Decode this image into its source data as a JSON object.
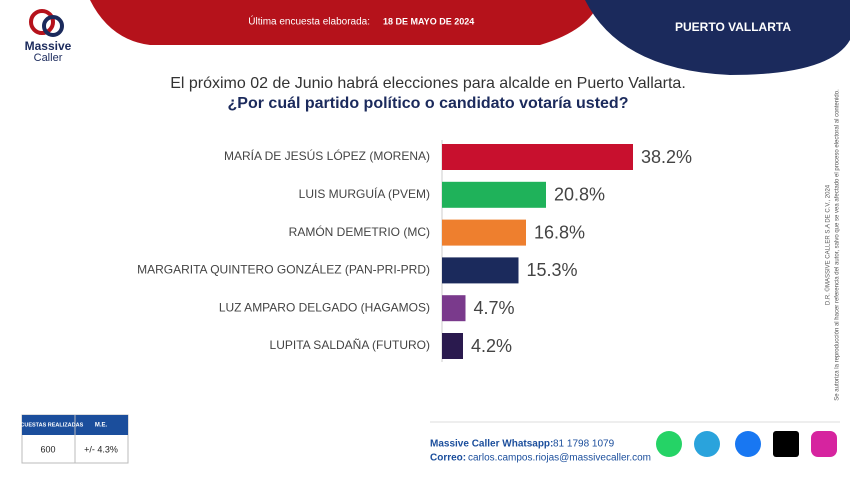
{
  "header": {
    "brand": "Massive",
    "brand_sub": "Caller",
    "survey_label": "Última encuesta elaborada:",
    "survey_date": "18 DE MAYO DE 2024",
    "region": "PUERTO VALLARTA"
  },
  "chart_data": {
    "type": "bar",
    "orientation": "horizontal",
    "title": "El próximo 02 de Junio habrá elecciones para alcalde en Puerto Vallarta.",
    "subtitle": "¿Por cuál partido político o candidato votaría usted?",
    "categories": [
      "MARÍA DE JESÚS LÓPEZ (MORENA)",
      "LUIS MURGUÍA (PVEM)",
      "RAMÓN DEMETRIO (MC)",
      "MARGARITA QUINTERO GONZÁLEZ (PAN-PRI-PRD)",
      "LUZ AMPARO DELGADO (HAGAMOS)",
      "LUPITA SALDAÑA (FUTURO)"
    ],
    "values": [
      38.2,
      20.8,
      16.8,
      15.3,
      4.7,
      4.2
    ],
    "value_labels": [
      "38.2%",
      "20.8%",
      "16.8%",
      "15.3%",
      "4.7%",
      "4.2%"
    ],
    "colors": [
      "#c8102e",
      "#1fb25a",
      "#ee7f2e",
      "#1b2a5c",
      "#7a3a8c",
      "#2a1a4e"
    ],
    "xlim": [
      0,
      40
    ]
  },
  "table": {
    "headers": [
      "ENCUESTAS REALIZADAS",
      "M.E."
    ],
    "rows": [
      [
        "600",
        "+/- 4.3%"
      ]
    ]
  },
  "contact": {
    "whatsapp_label": "Massive Caller Whatsapp:",
    "whatsapp": "81 1798 1079",
    "email_label": "Correo:",
    "email": "carlos.campos.riojas@massivecaller.com"
  },
  "side_note": [
    "D.R. ©MASSIVE CALLER S.A DE C.V., 2024",
    "Se autoriza la reproducción al hacer referencia del autor, salvo que se vea afectado el proceso electoral al contenido."
  ]
}
